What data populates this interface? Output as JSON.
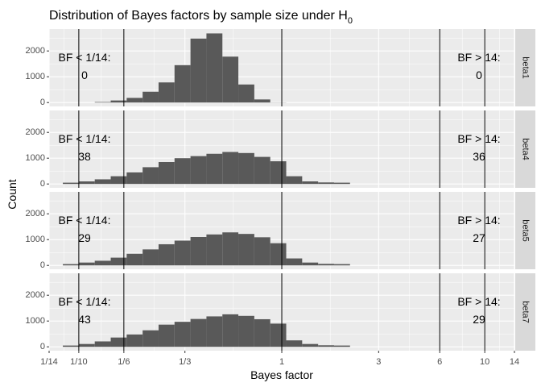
{
  "figure": {
    "title_main": "Distribution of Bayes factors by sample size under H",
    "title_subscript": "0",
    "xlabel": "Bayes factor",
    "ylabel": "Count"
  },
  "chart_data": {
    "type": "bar",
    "title": "Distribution of Bayes factors by sample size under H0",
    "xlabel": "Bayes factor",
    "ylabel": "Count",
    "x_ticks": [
      {
        "value": 0.0714,
        "label": "1/14"
      },
      {
        "value": 0.1,
        "label": "1/10"
      },
      {
        "value": 0.1667,
        "label": "1/6"
      },
      {
        "value": 0.3333,
        "label": "1/3"
      },
      {
        "value": 1,
        "label": "1"
      },
      {
        "value": 3,
        "label": "3"
      },
      {
        "value": 6,
        "label": "6"
      },
      {
        "value": 10,
        "label": "10"
      },
      {
        "value": 14,
        "label": "14"
      }
    ],
    "reference_lines": [
      0.1,
      0.1667,
      1,
      6,
      10
    ],
    "y_ticks": [
      0,
      1000,
      2000
    ],
    "ylim": [
      0,
      2700
    ],
    "grid": true,
    "bin_width_log10": 0.0786,
    "bins_start_log10": -1.0786,
    "panels": [
      {
        "strip": "beta1",
        "left_label": "BF < 1/14:",
        "left_count": "0",
        "right_label": "BF > 14:",
        "right_count": "0",
        "counts": [
          0,
          0,
          20,
          80,
          180,
          420,
          780,
          1450,
          2480,
          2680,
          1780,
          700,
          120,
          5
        ]
      },
      {
        "strip": "beta4",
        "left_label": "BF < 1/14:",
        "left_count": "38",
        "right_label": "BF > 14:",
        "right_count": "36",
        "counts": [
          50,
          100,
          180,
          300,
          450,
          650,
          850,
          1000,
          1080,
          1170,
          1240,
          1200,
          1050,
          880,
          300,
          100,
          60,
          50
        ]
      },
      {
        "strip": "beta5",
        "left_label": "BF < 1/14:",
        "left_count": "29",
        "right_label": "BF > 14:",
        "right_count": "27",
        "counts": [
          50,
          110,
          180,
          300,
          450,
          620,
          820,
          960,
          1100,
          1200,
          1280,
          1220,
          1090,
          860,
          270,
          110,
          60,
          50
        ]
      },
      {
        "strip": "beta7",
        "left_label": "BF < 1/14:",
        "left_count": "43",
        "right_label": "BF > 14:",
        "right_count": "29",
        "counts": [
          50,
          110,
          210,
          360,
          480,
          640,
          860,
          970,
          1080,
          1180,
          1260,
          1200,
          1070,
          900,
          250,
          110,
          60,
          50
        ]
      }
    ]
  }
}
